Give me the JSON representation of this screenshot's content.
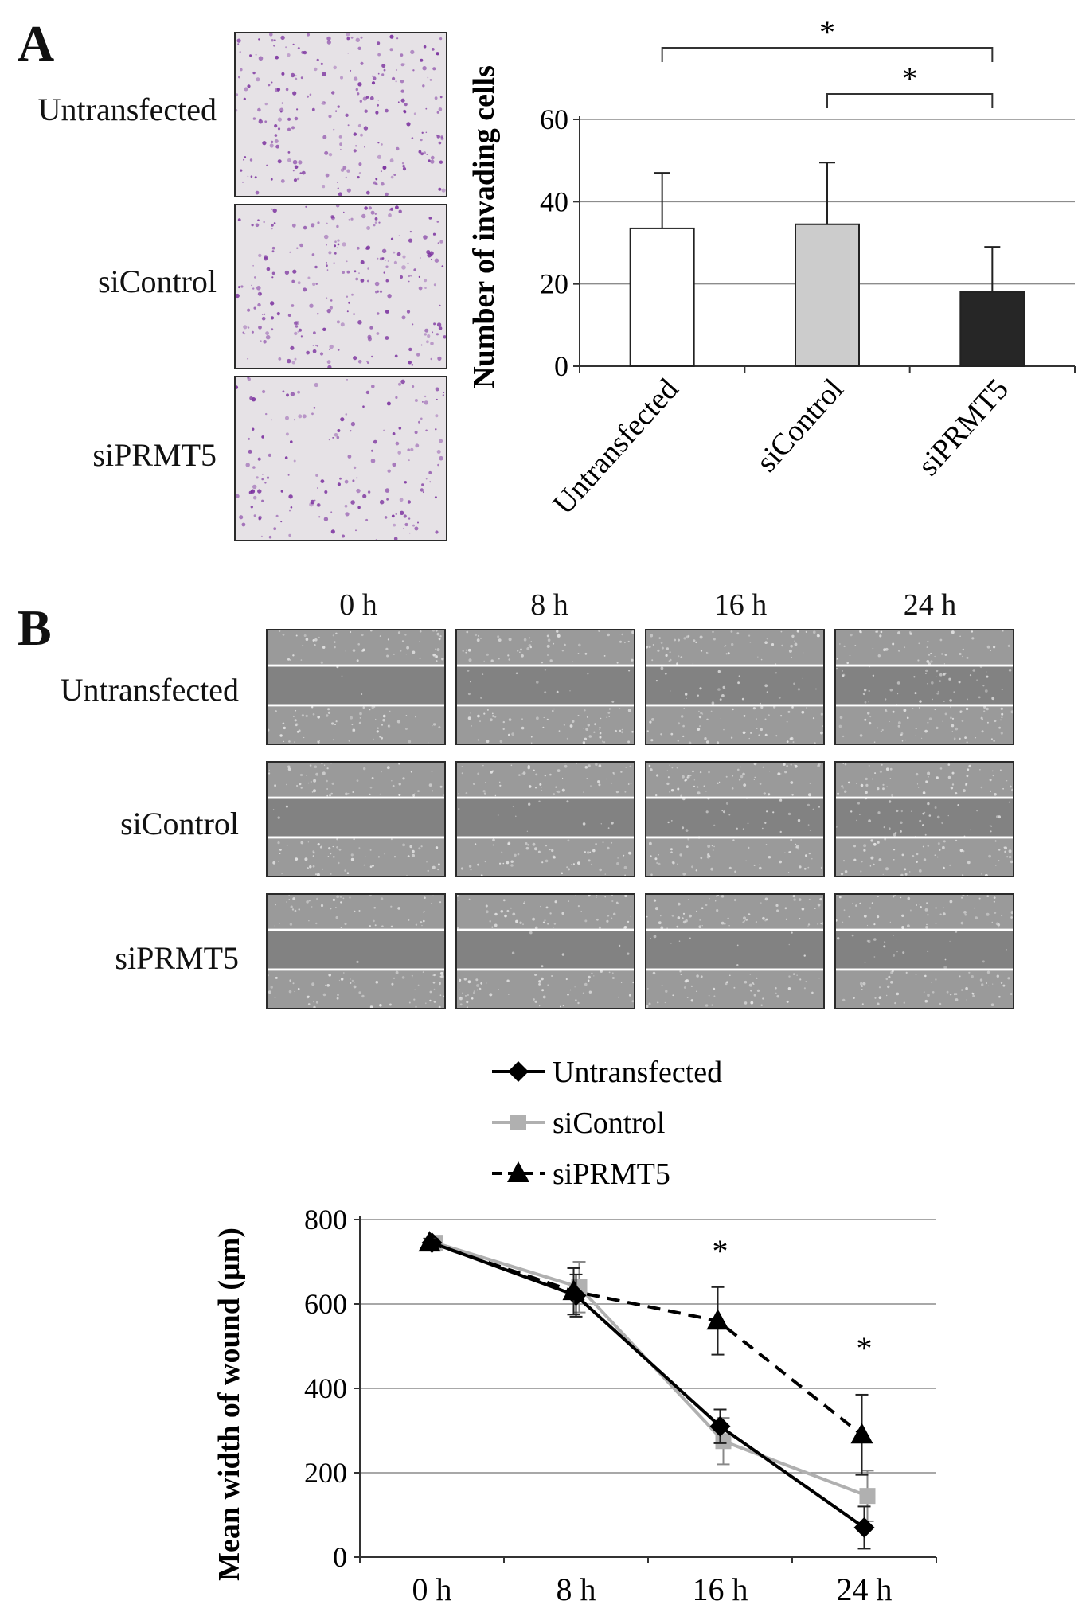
{
  "panel_a": {
    "letter": "A",
    "row_labels": [
      "Untransfected",
      "siControl",
      "siPRMT5"
    ]
  },
  "panel_b": {
    "letter": "B",
    "col_labels": [
      "0 h",
      "8 h",
      "16 h",
      "24 h"
    ],
    "row_labels": [
      "Untransfected",
      "siControl",
      "siPRMT5"
    ]
  },
  "colors": {
    "stain": "#7a2f9e",
    "untransfected": "#000000",
    "sicontrol": "#b0b0b0",
    "siprmt5": "#000000",
    "bar_untransfected": "#ffffff",
    "bar_sicontrol": "#cccccc",
    "bar_siprmt5": "#262626"
  },
  "chart_data": [
    {
      "type": "bar",
      "ylabel": "Number of invading cells",
      "categories": [
        "Untransfected",
        "siControl",
        "siPRMT5"
      ],
      "values": [
        33.5,
        34.5,
        18
      ],
      "errors": [
        13.5,
        15,
        11
      ],
      "ylim": [
        0,
        60
      ],
      "yticks": [
        0,
        20,
        40,
        60
      ],
      "grid": true,
      "significance": [
        {
          "from": "Untransfected",
          "to": "siPRMT5",
          "label": "*"
        },
        {
          "from": "siControl",
          "to": "siPRMT5",
          "label": "*"
        }
      ]
    },
    {
      "type": "line",
      "ylabel": "Mean width of wound (μm)",
      "categories": [
        "0 h",
        "8 h",
        "16 h",
        "24 h"
      ],
      "ylim": [
        0,
        800
      ],
      "yticks": [
        0,
        200,
        400,
        600,
        800
      ],
      "grid": true,
      "legend_position": "top",
      "series": [
        {
          "name": "Untransfected",
          "values": [
            745,
            620,
            310,
            70
          ],
          "errors": [
            10,
            50,
            40,
            50
          ],
          "marker": "diamond",
          "dash": false
        },
        {
          "name": "siControl",
          "values": [
            745,
            640,
            275,
            145
          ],
          "errors": [
            10,
            60,
            55,
            60
          ],
          "marker": "square",
          "dash": false
        },
        {
          "name": "siPRMT5",
          "values": [
            745,
            630,
            560,
            290
          ],
          "errors": [
            10,
            55,
            80,
            95
          ],
          "marker": "triangle",
          "dash": true
        }
      ],
      "significance_labels": [
        {
          "category": "16 h",
          "label": "*"
        },
        {
          "category": "24 h",
          "label": "*"
        }
      ]
    }
  ]
}
